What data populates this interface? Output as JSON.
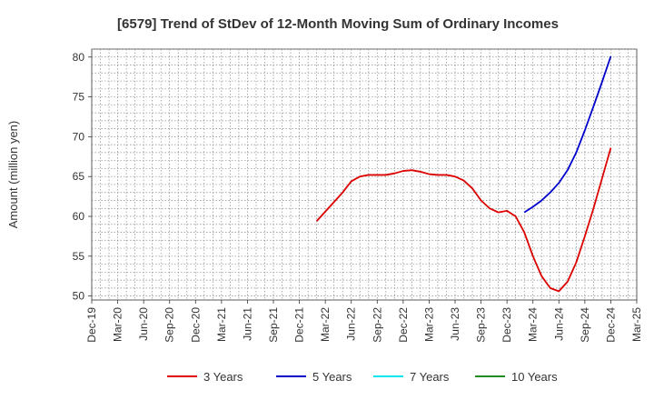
{
  "chart_data": {
    "type": "line",
    "title": "[6579]  Trend of StDev of 12-Month Moving Sum of Ordinary Incomes",
    "xlabel": "",
    "ylabel": "Amount (million yen)",
    "ylim": [
      49.5,
      81
    ],
    "yticks": [
      50,
      55,
      60,
      65,
      70,
      75,
      80
    ],
    "x_start": "Dec-19",
    "x_end": "Mar-25",
    "x_tick_labels": [
      "Dec-19",
      "Mar-20",
      "Jun-20",
      "Sep-20",
      "Dec-20",
      "Mar-21",
      "Jun-21",
      "Sep-21",
      "Dec-21",
      "Mar-22",
      "Jun-22",
      "Sep-22",
      "Dec-22",
      "Mar-23",
      "Jun-23",
      "Sep-23",
      "Dec-23",
      "Mar-24",
      "Jun-24",
      "Sep-24",
      "Dec-24",
      "Mar-25"
    ],
    "grid": true,
    "legend_position": "bottom",
    "series": [
      {
        "name": "3 Years",
        "color": "#dd0000",
        "points": [
          [
            "Feb-22",
            59.4
          ],
          [
            "Mar-22",
            60.6
          ],
          [
            "Apr-22",
            61.8
          ],
          [
            "May-22",
            63.0
          ],
          [
            "Jun-22",
            64.4
          ],
          [
            "Jul-22",
            65.0
          ],
          [
            "Aug-22",
            65.2
          ],
          [
            "Sep-22",
            65.2
          ],
          [
            "Oct-22",
            65.2
          ],
          [
            "Nov-22",
            65.4
          ],
          [
            "Dec-22",
            65.7
          ],
          [
            "Jan-23",
            65.8
          ],
          [
            "Feb-23",
            65.6
          ],
          [
            "Mar-23",
            65.3
          ],
          [
            "Apr-23",
            65.2
          ],
          [
            "May-23",
            65.2
          ],
          [
            "Jun-23",
            65.0
          ],
          [
            "Jul-23",
            64.5
          ],
          [
            "Aug-23",
            63.5
          ],
          [
            "Sep-23",
            62.0
          ],
          [
            "Oct-23",
            61.0
          ],
          [
            "Nov-23",
            60.5
          ],
          [
            "Dec-23",
            60.7
          ],
          [
            "Jan-24",
            60.0
          ],
          [
            "Feb-24",
            58.0
          ],
          [
            "Mar-24",
            55.0
          ],
          [
            "Apr-24",
            52.5
          ],
          [
            "May-24",
            51.0
          ],
          [
            "Jun-24",
            50.6
          ],
          [
            "Jul-24",
            51.8
          ],
          [
            "Aug-24",
            54.2
          ],
          [
            "Sep-24",
            57.5
          ],
          [
            "Oct-24",
            61.0
          ],
          [
            "Nov-24",
            64.8
          ],
          [
            "Dec-24",
            68.6
          ]
        ]
      },
      {
        "name": "5 Years",
        "color": "#0000cc",
        "points": [
          [
            "Feb-24",
            60.5
          ],
          [
            "Mar-24",
            61.2
          ],
          [
            "Apr-24",
            62.0
          ],
          [
            "May-24",
            63.0
          ],
          [
            "Jun-24",
            64.2
          ],
          [
            "Jul-24",
            65.8
          ],
          [
            "Aug-24",
            68.0
          ],
          [
            "Sep-24",
            70.8
          ],
          [
            "Oct-24",
            73.8
          ],
          [
            "Nov-24",
            76.9
          ],
          [
            "Dec-24",
            80.1
          ]
        ]
      },
      {
        "name": "7 Years",
        "color": "#00e5ee",
        "points": []
      },
      {
        "name": "10 Years",
        "color": "#228b22",
        "points": []
      }
    ]
  }
}
